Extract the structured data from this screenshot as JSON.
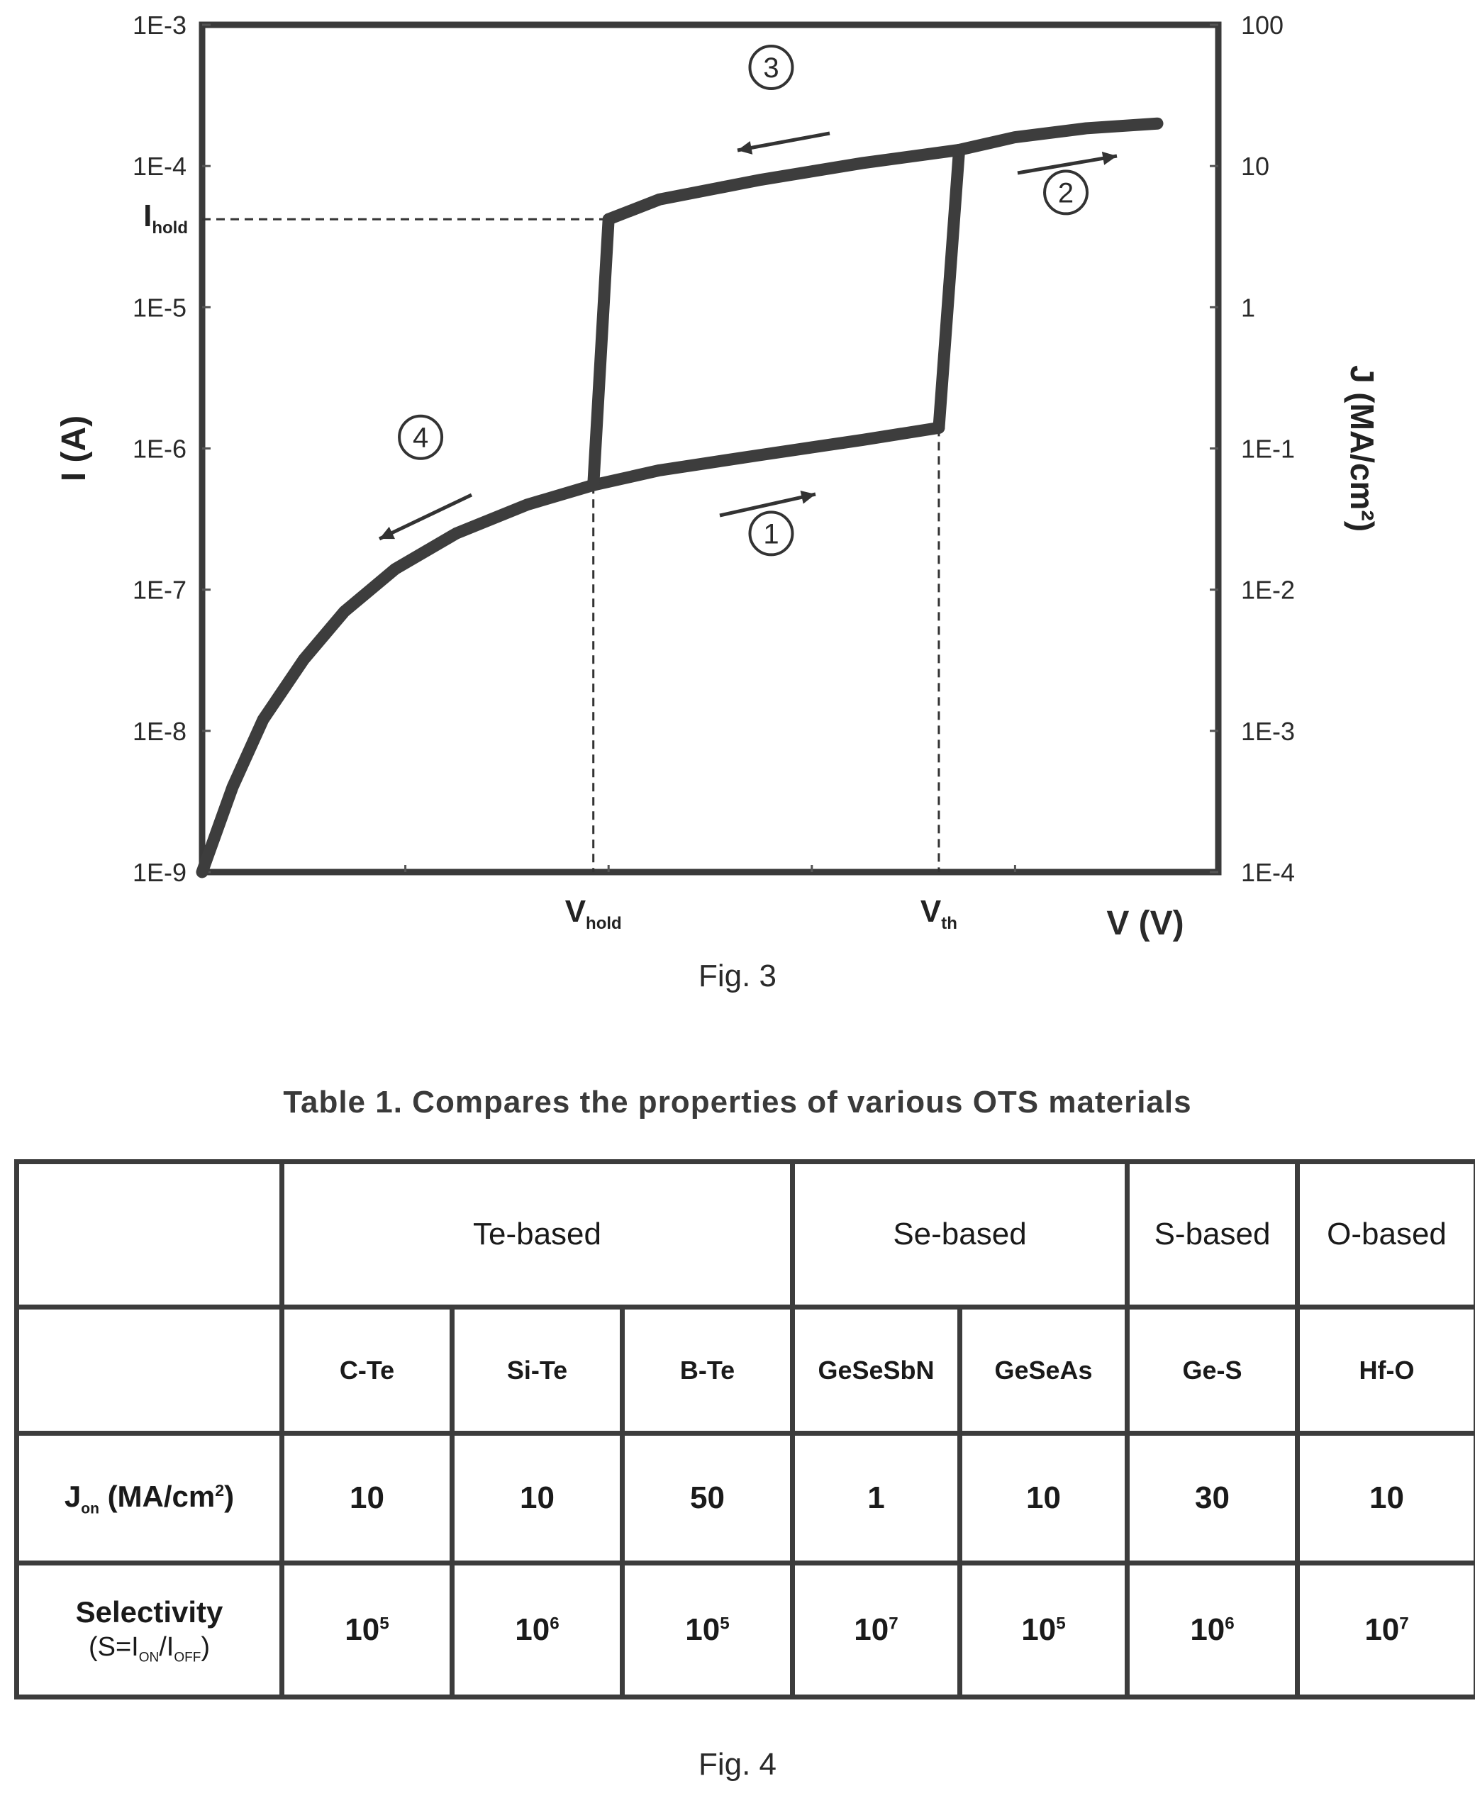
{
  "chart_data": {
    "type": "line",
    "xlabel": "V (V)",
    "ylabel_left": "I (A)",
    "ylabel_right": "J (MA/cm²)",
    "left_ticks": [
      "1E-9",
      "1E-8",
      "1E-7",
      "1E-6",
      "1E-5",
      "1E-4",
      "1E-3"
    ],
    "right_ticks": [
      "1E-4",
      "1E-3",
      "1E-2",
      "1E-1",
      "1",
      "10",
      "100"
    ],
    "y_scale": "log",
    "ylim": [
      1e-09,
      0.001
    ],
    "xlim": [
      0,
      1
    ],
    "x_markers": [
      {
        "label": "V",
        "sub": "hold",
        "x": 0.385
      },
      {
        "label": "V",
        "sub": "th",
        "x": 0.725
      }
    ],
    "y_markers": [
      {
        "label": "I",
        "sub": "hold",
        "y": 4.2e-05
      }
    ],
    "series": [
      {
        "x": [
          0.0,
          0.03,
          0.06,
          0.1,
          0.14,
          0.19,
          0.25,
          0.32,
          0.385,
          0.45,
          0.55,
          0.65,
          0.725
        ],
        "y": [
          1e-09,
          4e-09,
          1.2e-08,
          3.2e-08,
          7e-08,
          1.4e-07,
          2.5e-07,
          4e-07,
          5.5e-07,
          7e-07,
          9e-07,
          1.15e-06,
          1.4e-06
        ]
      },
      {
        "x": [
          0.725,
          0.745
        ],
        "y": [
          1.4e-06,
          0.00013
        ]
      },
      {
        "x": [
          0.745,
          0.8,
          0.87,
          0.94
        ],
        "y": [
          0.00013,
          0.00016,
          0.000185,
          0.0002
        ]
      },
      {
        "x": [
          0.745,
          0.65,
          0.55,
          0.45,
          0.4
        ],
        "y": [
          0.00013,
          0.000105,
          8e-05,
          5.8e-05,
          4.2e-05
        ]
      },
      {
        "x": [
          0.4,
          0.385
        ],
        "y": [
          4.2e-05,
          5.5e-07
        ]
      }
    ],
    "annotations": [
      {
        "label": "1",
        "x": 0.56,
        "y": 2.5e-07,
        "arrow": "right"
      },
      {
        "label": "2",
        "x": 0.85,
        "y": 6.5e-05,
        "arrow": "right"
      },
      {
        "label": "3",
        "x": 0.56,
        "y": 0.0005,
        "arrow": "left"
      },
      {
        "label": "4",
        "x": 0.215,
        "y": 1.2e-06,
        "arrow": "left"
      }
    ]
  },
  "fig3_caption": "Fig. 3",
  "table": {
    "title": "Table 1. Compares the properties of various OTS materials",
    "groups": [
      {
        "label": "Te-based",
        "span": 3
      },
      {
        "label": "Se-based",
        "span": 2
      },
      {
        "label": "S-based",
        "span": 1
      },
      {
        "label": "O-based",
        "span": 1
      }
    ],
    "materials": [
      "C-Te",
      "Si-Te",
      "B-Te",
      "GeSeSbN",
      "GeSeAs",
      "Ge-S",
      "Hf-O"
    ],
    "jon_label": {
      "main": "J",
      "sub": "on",
      "unit_pre": " (MA/cm",
      "unit_sup": "2",
      "unit_post": ")"
    },
    "jon_values": [
      "10",
      "10",
      "50",
      "1",
      "10",
      "30",
      "10"
    ],
    "sel_label": {
      "line1": "Selectivity",
      "line2_pre": "(S=I",
      "on_sub": "ON",
      "mid": "/I",
      "off_sub": "OFF",
      "line2_post": ")"
    },
    "sel_base": "10",
    "sel_exponents": [
      "5",
      "6",
      "5",
      "7",
      "5",
      "6",
      "7"
    ]
  },
  "fig4_caption": "Fig. 4"
}
